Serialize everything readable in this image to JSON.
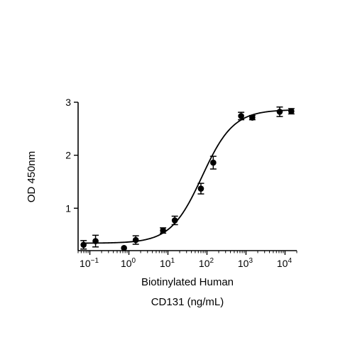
{
  "chart_data": {
    "type": "scatter",
    "title": "",
    "xlabel_line1": "Biotinylated Human",
    "xlabel_line2": "CD131 (ng/mL)",
    "ylabel": "OD 450nm",
    "xscale": "log",
    "xlim": [
      0.05,
      20000
    ],
    "ylim": [
      0.2,
      3.0
    ],
    "x_ticks": [
      {
        "value": 0.1,
        "base": "10",
        "exp": "−1"
      },
      {
        "value": 1,
        "base": "10",
        "exp": "0"
      },
      {
        "value": 10,
        "base": "10",
        "exp": "1"
      },
      {
        "value": 100,
        "base": "10",
        "exp": "2"
      },
      {
        "value": 1000,
        "base": "10",
        "exp": "3"
      },
      {
        "value": 10000,
        "base": "10",
        "exp": "4"
      }
    ],
    "y_ticks": [
      "1",
      "2",
      "3"
    ],
    "grid": false,
    "marker_color": "#000000",
    "curve_color": "#000000",
    "points": [
      {
        "x": 0.069,
        "y": 0.31,
        "err": 0.08
      },
      {
        "x": 0.14,
        "y": 0.38,
        "err": 0.11
      },
      {
        "x": 0.75,
        "y": 0.25,
        "err": 0.0
      },
      {
        "x": 1.5,
        "y": 0.4,
        "err": 0.08
      },
      {
        "x": 7.5,
        "y": 0.58,
        "err": 0.05
      },
      {
        "x": 15,
        "y": 0.77,
        "err": 0.08
      },
      {
        "x": 70,
        "y": 1.37,
        "err": 0.1
      },
      {
        "x": 145,
        "y": 1.86,
        "err": 0.12
      },
      {
        "x": 750,
        "y": 2.74,
        "err": 0.07
      },
      {
        "x": 1450,
        "y": 2.71,
        "err": 0.04
      },
      {
        "x": 7300,
        "y": 2.82,
        "err": 0.09
      },
      {
        "x": 14500,
        "y": 2.83,
        "err": 0.05
      }
    ],
    "fit": {
      "bottom": 0.34,
      "top": 2.86,
      "ec50": 75,
      "hill": 1.08
    }
  }
}
